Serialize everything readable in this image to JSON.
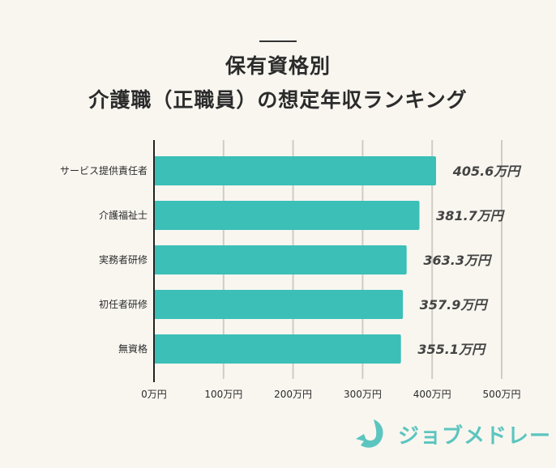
{
  "chart_data": {
    "type": "bar",
    "orientation": "horizontal",
    "title_lines": [
      "保有資格別",
      "介護職（正職員）の想定年収ランキング"
    ],
    "categories": [
      "サービス提供責任者",
      "介護福祉士",
      "実務者研修",
      "初任者研修",
      "無資格"
    ],
    "values": [
      405.6,
      381.7,
      363.3,
      357.9,
      355.1
    ],
    "data_labels": [
      "405.6万円",
      "381.7万円",
      "363.3万円",
      "357.9万円",
      "355.1万円"
    ],
    "unit": "万円",
    "xlim": [
      0,
      500
    ],
    "xticks": [
      0,
      100,
      200,
      300,
      400,
      500
    ],
    "xtick_labels": [
      "0万円",
      "100万円",
      "200万円",
      "300万円",
      "400万円",
      "500万円"
    ],
    "grid": "vertical",
    "bar_color": "#3bbfb7"
  },
  "brand": {
    "name": "ジョブメドレー",
    "color": "#5cc5bf"
  }
}
